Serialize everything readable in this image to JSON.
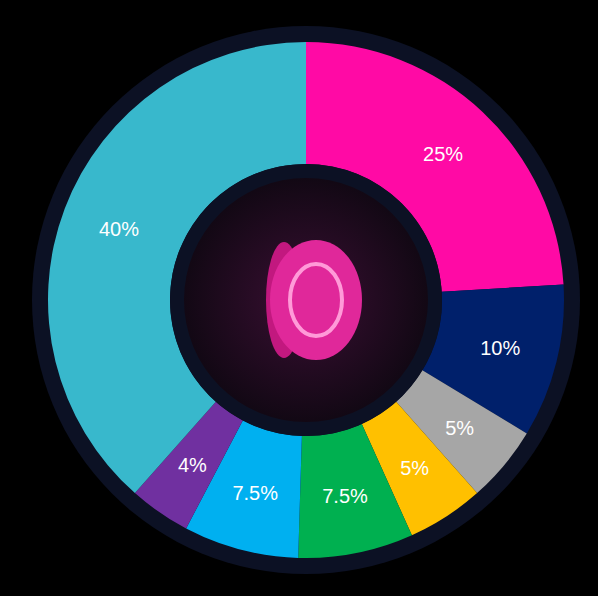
{
  "chart_data": {
    "type": "pie",
    "values": [
      25,
      10,
      5,
      5,
      7.5,
      7.5,
      4,
      40
    ],
    "value_labels": [
      "25%",
      "10%",
      "5%",
      "5%",
      "7.5%",
      "7.5%",
      "4%",
      "40%"
    ],
    "colors": [
      "#ff0aa5",
      "#00206b",
      "#a6a6a6",
      "#ffc000",
      "#00b050",
      "#00b0f0",
      "#7030a0",
      "#38b8cc"
    ],
    "data_labels": true
  }
}
